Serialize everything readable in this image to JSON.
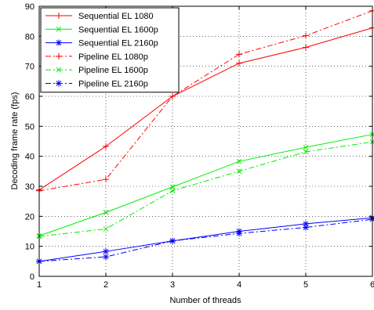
{
  "chart_data": {
    "type": "line",
    "xlabel": "Number of threads",
    "ylabel": "Decoding frame rate (fps)",
    "x": [
      1,
      2,
      3,
      4,
      5,
      6
    ],
    "xlim": [
      1,
      6
    ],
    "ylim": [
      0,
      90
    ],
    "xticks": [
      "1",
      "2",
      "3",
      "4",
      "5",
      "6"
    ],
    "yticks": [
      "0",
      "10",
      "20",
      "30",
      "40",
      "50",
      "60",
      "70",
      "80",
      "90"
    ],
    "grid": true,
    "legend_position": "top-left",
    "series": [
      {
        "name": "Sequential EL 1080",
        "color": "#ff0000",
        "style": "solid",
        "marker": "plus",
        "values": [
          28.8,
          43.3,
          60.0,
          71.0,
          76.3,
          82.8
        ]
      },
      {
        "name": "Sequential EL 1600p",
        "color": "#00ee00",
        "style": "solid",
        "marker": "x",
        "values": [
          13.5,
          21.3,
          29.8,
          38.3,
          43.0,
          47.3
        ]
      },
      {
        "name": "Sequential EL 2160p",
        "color": "#0000ff",
        "style": "solid",
        "marker": "star",
        "values": [
          5.0,
          8.3,
          11.8,
          15.0,
          17.5,
          19.5
        ]
      },
      {
        "name": "Pipeline EL 1080p",
        "color": "#ff0000",
        "style": "dashdot",
        "marker": "plus",
        "values": [
          28.5,
          32.3,
          60.0,
          74.0,
          80.2,
          88.5
        ]
      },
      {
        "name": "Pipeline EL 1600p",
        "color": "#00ee00",
        "style": "dashdot",
        "marker": "x",
        "values": [
          13.3,
          15.8,
          28.5,
          35.0,
          41.5,
          44.8
        ]
      },
      {
        "name": "Pipeline EL 2160p",
        "color": "#0000ff",
        "style": "dashdot",
        "marker": "star",
        "values": [
          5.0,
          6.5,
          11.8,
          14.3,
          16.3,
          19.0
        ]
      }
    ]
  }
}
